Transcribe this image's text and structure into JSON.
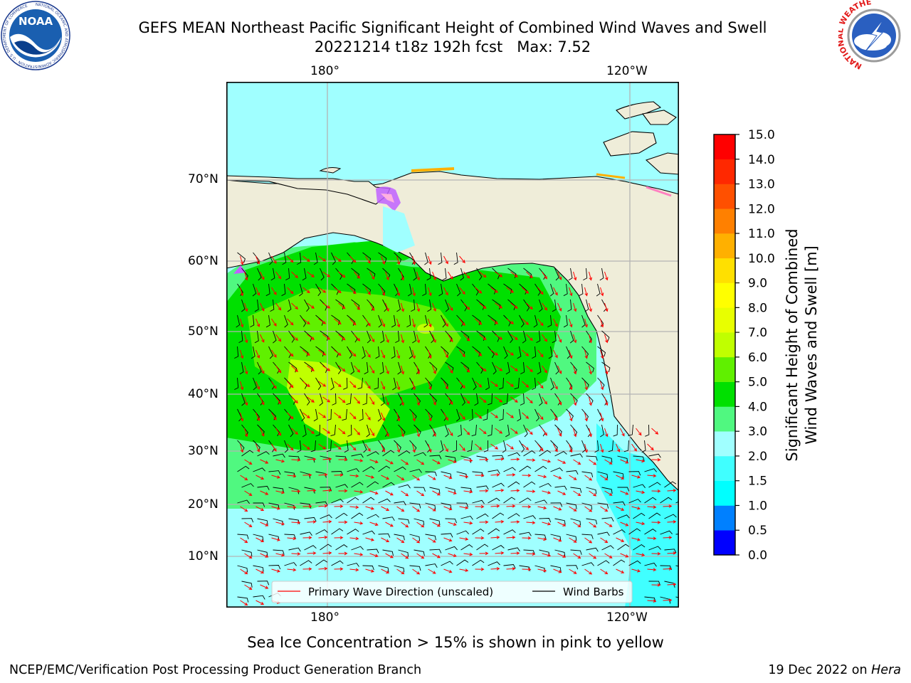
{
  "title": {
    "line1": "GEFS MEAN Northeast Pacific Significant Height of Combined Wind Waves and Swell",
    "line2": "20221214 t18z 192h fcst   Max: 7.52"
  },
  "logos": {
    "left": {
      "name": "NOAA",
      "ring_text": "NATIONAL OCEANIC AND ATMOSPHERIC ADMINISTRATION · U.S. DEPARTMENT OF COMMERCE"
    },
    "right": {
      "name": "NATIONAL WEATHER SERVICE"
    }
  },
  "map": {
    "lon_labels": [
      "180°",
      "120°W"
    ],
    "lat_labels": [
      "70°N",
      "60°N",
      "50°N",
      "40°N",
      "30°N",
      "20°N",
      "10°N"
    ],
    "grid": true,
    "colors": {
      "land": "#efedd9",
      "grid": "#b4b4b4",
      "wave_arrow": "#ff0000",
      "wind_barb": "#000000"
    }
  },
  "legend": {
    "wave_label": "Primary Wave Direction (unscaled)",
    "barb_label": "Wind Barbs"
  },
  "colorbar": {
    "label_line1": "Significant Height of Combined",
    "label_line2": "Wind Waves and Swell [m]",
    "ticks": [
      "0.0",
      "0.5",
      "1.0",
      "1.5",
      "2.0",
      "3.0",
      "4.0",
      "5.0",
      "6.0",
      "7.0",
      "8.0",
      "9.0",
      "10.0",
      "11.0",
      "12.0",
      "13.0",
      "14.0",
      "15.0"
    ],
    "colors": [
      "#0000ff",
      "#0080ff",
      "#00ffff",
      "#40ffff",
      "#a0ffff",
      "#50f880",
      "#00e000",
      "#60f000",
      "#c0ff00",
      "#e8ff00",
      "#ffff00",
      "#ffe000",
      "#ffb000",
      "#ff8000",
      "#ff5000",
      "#ff2800",
      "#ff0000"
    ]
  },
  "note": "Sea Ice Concentration > 15% is shown in pink to yellow",
  "credit": "NCEP/EMC/Verification Post Processing Product Generation Branch",
  "date": {
    "text": "19 Dec 2022 on",
    "machine": "Hera"
  }
}
